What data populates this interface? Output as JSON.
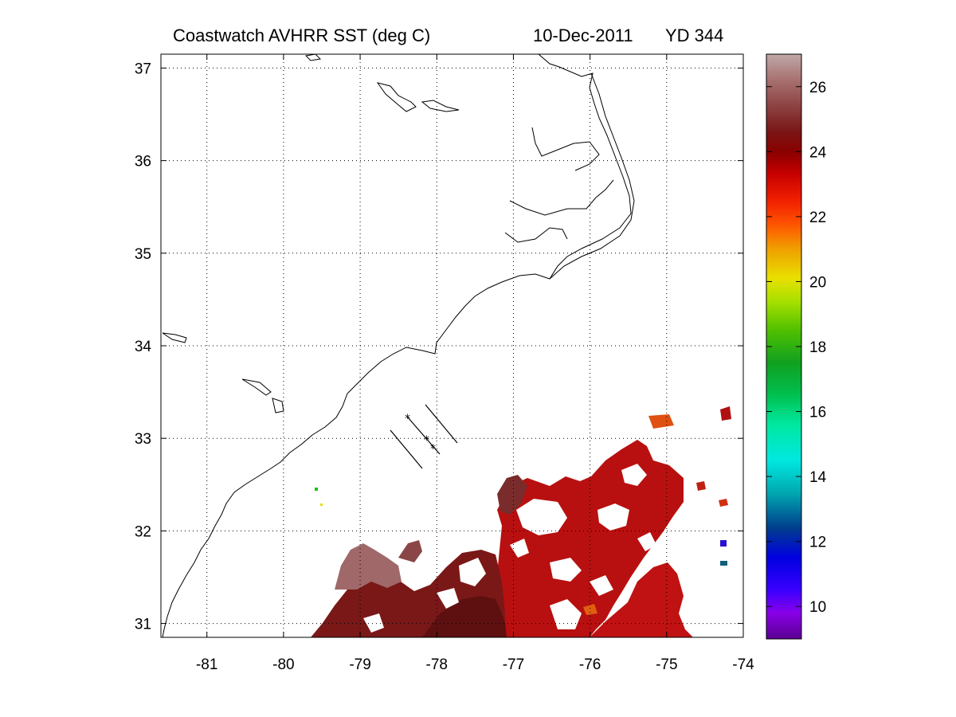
{
  "title": {
    "product": "Coastwatch   AVHRR   SST  (deg C)",
    "date": "10-Dec-2011",
    "yearday": "YD 344"
  },
  "map": {
    "lon_range": [
      -81.6,
      -74
    ],
    "lat_range": [
      30.85,
      37.15
    ],
    "x_ticks": [
      -81,
      -80,
      -79,
      -78,
      -77,
      -76,
      -75,
      -74
    ],
    "y_ticks": [
      31,
      32,
      33,
      34,
      35,
      36,
      37
    ],
    "x_tick_labels": [
      "-81",
      "-80",
      "-79",
      "-78",
      "-77",
      "-76",
      "-75",
      "-74"
    ],
    "y_tick_labels": [
      "31",
      "32",
      "33",
      "34",
      "35",
      "36",
      "37"
    ],
    "grid": "dotted"
  },
  "colorbar": {
    "range": [
      9,
      27
    ],
    "ticks": [
      10,
      12,
      14,
      16,
      18,
      20,
      22,
      24,
      26
    ],
    "tick_labels": [
      "10",
      "12",
      "14",
      "16",
      "18",
      "20",
      "22",
      "24",
      "26"
    ],
    "stops": [
      {
        "v": 9.0,
        "c": "#5a0090"
      },
      {
        "v": 9.8,
        "c": "#8800e8"
      },
      {
        "v": 10.5,
        "c": "#3a00ff"
      },
      {
        "v": 11.5,
        "c": "#0000e0"
      },
      {
        "v": 12.4,
        "c": "#003c8c"
      },
      {
        "v": 13.5,
        "c": "#00a8b0"
      },
      {
        "v": 14.5,
        "c": "#00e8e0"
      },
      {
        "v": 15.6,
        "c": "#00e8a0"
      },
      {
        "v": 16.5,
        "c": "#00c050"
      },
      {
        "v": 17.5,
        "c": "#10a020"
      },
      {
        "v": 18.5,
        "c": "#50c000"
      },
      {
        "v": 19.4,
        "c": "#a8e000"
      },
      {
        "v": 20.1,
        "c": "#e8e000"
      },
      {
        "v": 21.0,
        "c": "#f0a000"
      },
      {
        "v": 21.8,
        "c": "#ff5000"
      },
      {
        "v": 22.5,
        "c": "#f02000"
      },
      {
        "v": 23.3,
        "c": "#c80000"
      },
      {
        "v": 24.0,
        "c": "#8a0000"
      },
      {
        "v": 24.6,
        "c": "#7a1515"
      },
      {
        "v": 25.3,
        "c": "#8a3c3c"
      },
      {
        "v": 26.2,
        "c": "#a87070"
      },
      {
        "v": 27.0,
        "c": "#c0a8a8"
      }
    ]
  }
}
